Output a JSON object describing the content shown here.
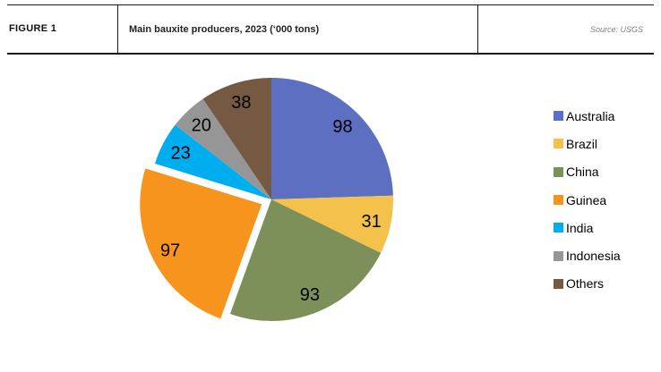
{
  "header": {
    "figure_label": "FIGURE 1",
    "title": "Main bauxite producers, 2023 (‘000 tons)",
    "source": "Source: USGS"
  },
  "chart_data": {
    "type": "pie",
    "title": "Main bauxite producers, 2023 (‘000 tons)",
    "categories": [
      "Australia",
      "Brazil",
      "China",
      "Guinea",
      "India",
      "Indonesia",
      "Others"
    ],
    "values": [
      98,
      31,
      93,
      97,
      23,
      20,
      38
    ],
    "colors": [
      "#5C6FC0",
      "#F4C24A",
      "#7E905A",
      "#F7941D",
      "#00AEEF",
      "#969696",
      "#755943"
    ],
    "start_angle_deg": 0,
    "direction": "clockwise",
    "exploded_slice": "Guinea",
    "data_labels_visible": true,
    "legend_position": "right",
    "source": "USGS"
  }
}
